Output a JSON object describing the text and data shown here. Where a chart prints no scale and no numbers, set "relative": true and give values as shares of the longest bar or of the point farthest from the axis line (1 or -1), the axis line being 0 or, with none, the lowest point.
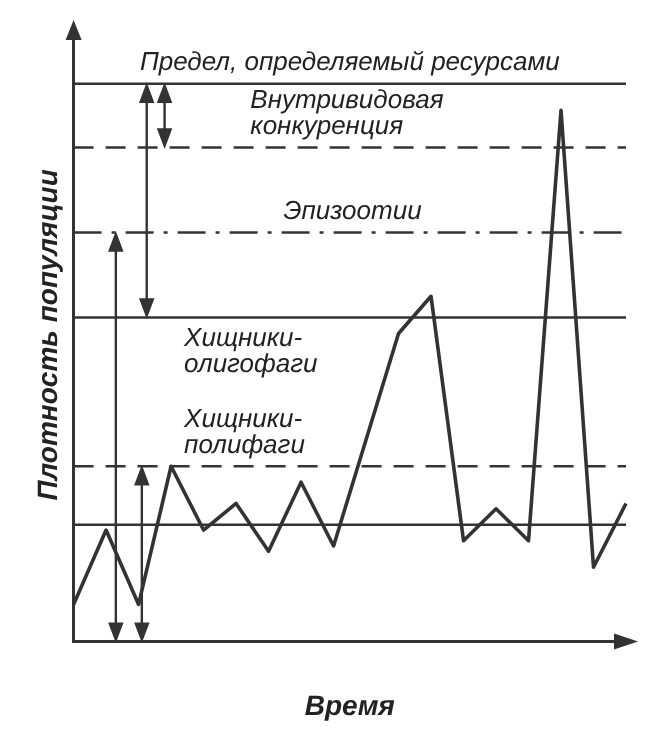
{
  "chart_data": {
    "type": "line",
    "relative": true,
    "xlabel": "Время",
    "ylabel": "Плотность популяции",
    "categories": [
      null,
      null,
      null,
      null,
      null,
      null,
      null,
      null,
      null,
      null,
      null,
      null,
      null,
      null,
      null,
      null,
      null,
      null
    ],
    "series": [
      {
        "color": "#333333",
        "values": [
          0.07,
          0.21,
          0.07,
          0.33,
          0.21,
          0.26,
          0.17,
          0.3,
          0.18,
          0.38,
          0.58,
          0.65,
          0.19,
          0.25,
          0.19,
          1,
          0.14,
          0.26
        ]
      }
    ],
    "ref_lines": [
      {
        "axis": "y",
        "value": 1.05,
        "label": "Предел, определяемый ресурсами",
        "line_style": "solid",
        "color": "#333333"
      },
      {
        "axis": "y",
        "value": 0.93,
        "label": "Внутривидовая конкуренция",
        "line_style": "dashed",
        "color": "#333333"
      },
      {
        "axis": "y",
        "value": 0.77,
        "label": "Эпизоотии",
        "line_style": "dotted",
        "color": "#333333"
      },
      {
        "axis": "y",
        "value": 0.61,
        "label": "Хищники-олигофаги",
        "line_style": "solid",
        "color": "#333333"
      },
      {
        "axis": "y",
        "value": 0.33,
        "label": "Хищники-полифаги",
        "line_style": "dashed",
        "color": "#333333"
      },
      {
        "axis": "y",
        "value": 0.22,
        "line_style": "solid",
        "color": "#333333"
      }
    ],
    "grid": false,
    "legend": false,
    "marker": "none",
    "line_style": "solid"
  }
}
